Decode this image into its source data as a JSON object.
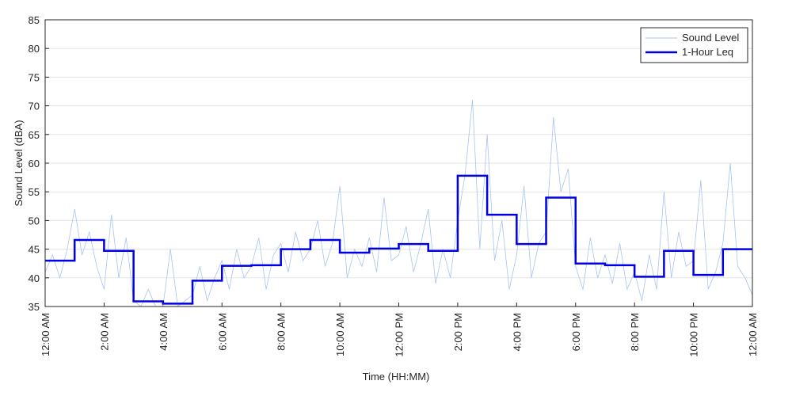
{
  "chart_data": {
    "type": "line",
    "xlabel": "Time (HH:MM)",
    "ylabel": "Sound Level (dBA)",
    "xlim": [
      0,
      24
    ],
    "ylim": [
      35,
      85
    ],
    "xticks": [
      {
        "value": 0,
        "label": "12:00 AM"
      },
      {
        "value": 2,
        "label": "2:00 AM"
      },
      {
        "value": 4,
        "label": "4:00 AM"
      },
      {
        "value": 6,
        "label": "6:00 AM"
      },
      {
        "value": 8,
        "label": "8:00 AM"
      },
      {
        "value": 10,
        "label": "10:00 AM"
      },
      {
        "value": 12,
        "label": "12:00 PM"
      },
      {
        "value": 14,
        "label": "2:00 PM"
      },
      {
        "value": 16,
        "label": "4:00 PM"
      },
      {
        "value": 18,
        "label": "6:00 PM"
      },
      {
        "value": 20,
        "label": "8:00 PM"
      },
      {
        "value": 22,
        "label": "10:00 PM"
      },
      {
        "value": 24,
        "label": "12:00 AM"
      }
    ],
    "yticks": [
      35,
      40,
      45,
      50,
      55,
      60,
      65,
      70,
      75,
      80,
      85
    ],
    "grid": true,
    "legend": "upper right",
    "series": [
      {
        "name": "Sound Level",
        "color": "#a9c3f2",
        "style": "line",
        "x": [
          0,
          0.25,
          0.5,
          0.75,
          1,
          1.25,
          1.5,
          1.75,
          2,
          2.25,
          2.5,
          2.75,
          3,
          3.25,
          3.5,
          3.75,
          4,
          4.25,
          4.5,
          4.75,
          5,
          5.25,
          5.5,
          5.75,
          6,
          6.25,
          6.5,
          6.75,
          7,
          7.25,
          7.5,
          7.75,
          8,
          8.25,
          8.5,
          8.75,
          9,
          9.25,
          9.5,
          9.75,
          10,
          10.25,
          10.5,
          10.75,
          11,
          11.25,
          11.5,
          11.75,
          12,
          12.25,
          12.5,
          12.75,
          13,
          13.25,
          13.5,
          13.75,
          14,
          14.25,
          14.5,
          14.75,
          15,
          15.25,
          15.5,
          15.75,
          16,
          16.25,
          16.5,
          16.75,
          17,
          17.25,
          17.5,
          17.75,
          18,
          18.25,
          18.5,
          18.75,
          19,
          19.25,
          19.5,
          19.75,
          20,
          20.25,
          20.5,
          20.75,
          21,
          21.25,
          21.5,
          21.75,
          22,
          22.25,
          22.5,
          22.75,
          23,
          23.25,
          23.5,
          23.75,
          24
        ],
        "values": [
          41,
          44,
          40,
          45,
          52,
          44,
          48,
          42,
          38,
          51,
          40,
          47,
          36,
          35,
          38,
          35,
          35,
          45,
          35,
          36,
          37,
          42,
          36,
          40,
          43,
          38,
          45,
          40,
          42,
          47,
          38,
          44,
          46,
          41,
          48,
          43,
          45,
          50,
          42,
          46,
          56,
          40,
          45,
          42,
          47,
          41,
          54,
          43,
          44,
          49,
          41,
          46,
          52,
          39,
          45,
          40,
          50,
          58,
          71,
          45,
          65,
          43,
          50,
          38,
          44,
          56,
          40,
          46,
          48,
          68,
          55,
          59,
          42,
          38,
          47,
          40,
          44,
          39,
          46,
          38,
          41,
          36,
          44,
          38,
          55,
          40,
          48,
          42,
          43,
          57,
          38,
          41,
          46,
          60,
          42,
          40,
          37
        ]
      },
      {
        "name": "1-Hour Leq",
        "color": "#0000e6",
        "style": "steps-post",
        "x": [
          0,
          1,
          2,
          3,
          4,
          5,
          6,
          7,
          8,
          9,
          10,
          11,
          12,
          13,
          14,
          15,
          16,
          17,
          18,
          19,
          20,
          21,
          22,
          23
        ],
        "values": [
          43.0,
          46.6,
          44.7,
          35.9,
          35.5,
          39.5,
          42.1,
          42.2,
          45.0,
          46.6,
          44.4,
          45.1,
          45.9,
          44.7,
          57.8,
          51.0,
          45.9,
          54.0,
          42.5,
          42.2,
          40.2,
          44.7,
          40.5,
          45.0
        ]
      }
    ]
  }
}
